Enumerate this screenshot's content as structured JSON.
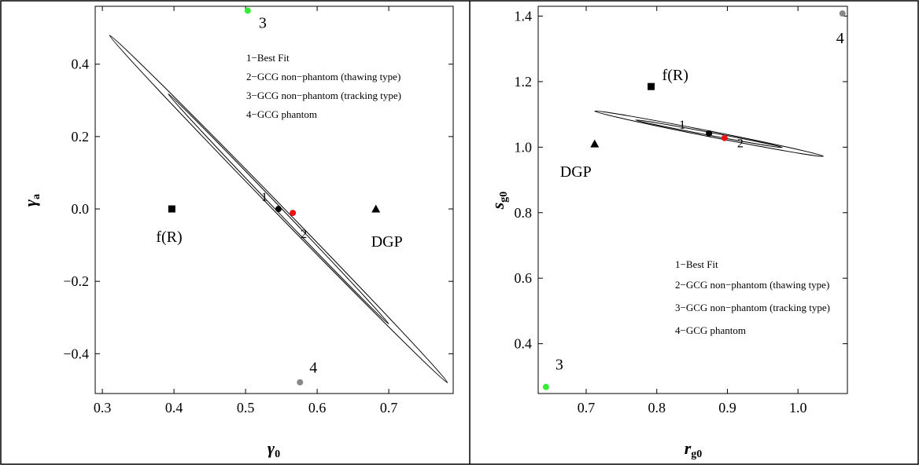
{
  "chart_data": [
    {
      "type": "scatter",
      "panel": "left",
      "xlabel": "γ",
      "xlabel_sub": "0",
      "ylabel": "γ",
      "ylabel_sub": "a",
      "xlim": [
        0.29,
        0.79
      ],
      "ylim": [
        -0.51,
        0.56
      ],
      "xticks": [
        0.3,
        0.4,
        0.5,
        0.6,
        0.7
      ],
      "xtick_labels": [
        "0.3",
        "0.4",
        "0.5",
        "0.6",
        "0.7"
      ],
      "yticks": [
        -0.4,
        -0.2,
        0.0,
        0.2,
        0.4
      ],
      "ytick_labels": [
        "−0.4",
        "−0.2",
        "0.0",
        "0.2",
        "0.4"
      ],
      "grid": false,
      "legend_position": "top-right",
      "legend": [
        "1−Best Fit",
        "2−GCG non−phantom (thawing type)",
        "3−GCG non−phantom (tracking type)",
        "4−GCG phantom"
      ],
      "contours": [
        {
          "center": [
            0.546,
            0.0
          ],
          "end": [
            0.31,
            0.48
          ],
          "half_width": 0.012
        },
        {
          "center": [
            0.546,
            0.0
          ],
          "end": [
            0.392,
            0.318
          ],
          "half_width": 0.0068
        }
      ],
      "points": [
        {
          "id": "best-fit",
          "x": 0.546,
          "y": 0.0,
          "color": "#000000",
          "shape": "circle",
          "label": "1"
        },
        {
          "id": "thawing",
          "x": 0.566,
          "y": -0.011,
          "color": "#ee1111",
          "shape": "circle",
          "label": "2"
        },
        {
          "id": "tracking",
          "x": 0.503,
          "y": 0.548,
          "color": "#33ee33",
          "shape": "circle",
          "label": "3"
        },
        {
          "id": "phantom",
          "x": 0.576,
          "y": -0.479,
          "color": "#888888",
          "shape": "circle",
          "label": "4"
        },
        {
          "id": "fR",
          "x": 0.397,
          "y": 0.0,
          "color": "#000000",
          "shape": "square",
          "label": "f(R)"
        },
        {
          "id": "DGP",
          "x": 0.682,
          "y": 0.0,
          "color": "#000000",
          "shape": "triangle",
          "label": "DGP"
        }
      ]
    },
    {
      "type": "scatter",
      "panel": "right",
      "xlabel": "r",
      "xlabel_sub": "g0",
      "ylabel": "s",
      "ylabel_sub": "g0",
      "xlim": [
        0.632,
        1.07
      ],
      "ylim": [
        0.248,
        1.43
      ],
      "xticks": [
        0.7,
        0.8,
        0.9,
        1.0
      ],
      "xtick_labels": [
        "0.7",
        "0.8",
        "0.9",
        "1.0"
      ],
      "yticks": [
        0.4,
        0.6,
        0.8,
        1.0,
        1.2,
        1.4
      ],
      "ytick_labels": [
        "0.4",
        "0.6",
        "0.8",
        "1.0",
        "1.2",
        "1.4"
      ],
      "grid": false,
      "legend_position": "bottom-right",
      "legend": [
        "1−Best Fit",
        "2−GCG non−phantom (thawing type)",
        "3−GCG non−phantom (tracking type)",
        "4−GCG phantom"
      ],
      "contours": [
        {
          "center": [
            0.874,
            1.041
          ],
          "end": [
            0.712,
            1.11
          ],
          "half_width": 0.0085
        },
        {
          "center": [
            0.874,
            1.041
          ],
          "end": [
            0.77,
            1.083
          ],
          "half_width": 0.0045
        }
      ],
      "points": [
        {
          "id": "best-fit",
          "x": 0.874,
          "y": 1.042,
          "color": "#000000",
          "shape": "circle",
          "label": "1"
        },
        {
          "id": "thawing",
          "x": 0.896,
          "y": 1.028,
          "color": "#ee1111",
          "shape": "circle",
          "label": "2"
        },
        {
          "id": "tracking",
          "x": 0.643,
          "y": 0.268,
          "color": "#33ee33",
          "shape": "circle",
          "label": "3"
        },
        {
          "id": "phantom",
          "x": 1.063,
          "y": 1.408,
          "color": "#888888",
          "shape": "circle",
          "label": "4"
        },
        {
          "id": "fR",
          "x": 0.792,
          "y": 1.185,
          "color": "#000000",
          "shape": "square",
          "label": "f(R)"
        },
        {
          "id": "DGP",
          "x": 0.712,
          "y": 1.01,
          "color": "#000000",
          "shape": "triangle",
          "label": "DGP"
        }
      ]
    }
  ]
}
